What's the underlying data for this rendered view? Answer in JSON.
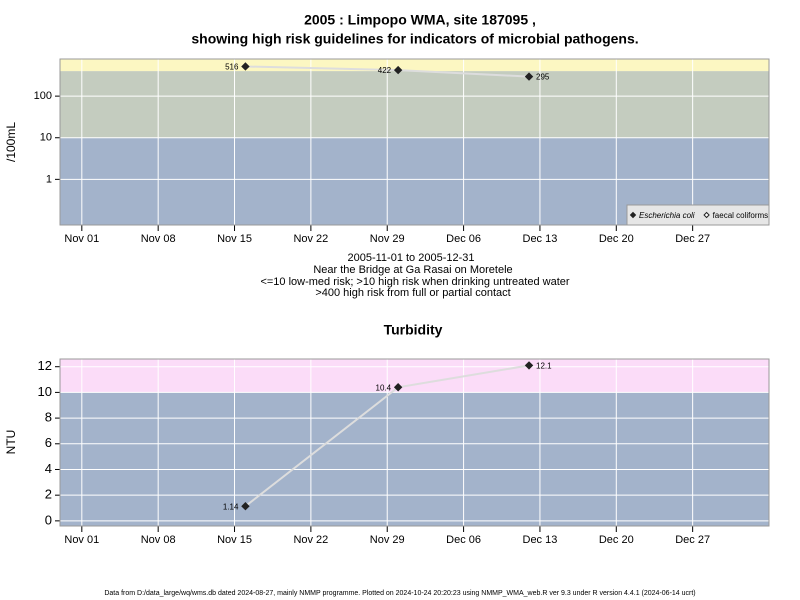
{
  "chart_data": [
    {
      "type": "scatter",
      "title": "2005 : Limpopo WMA, site 187095 ,",
      "subtitle": "showing high risk guidelines for indicators of microbial pathogens.",
      "ylabel": "/100mL",
      "log_y": true,
      "annotations": [
        "2005-11-01 to 2005-12-31",
        "Near the Bridge at Ga Rasai on Moretele",
        "<=10 low-med risk; >10 high risk when drinking untreated water",
        ">400 high risk from full or partial contact"
      ],
      "x": [
        "2005-11-16",
        "2005-11-30",
        "2005-12-12"
      ],
      "series": [
        {
          "name": "Escherichia coli",
          "color": "#222222",
          "values": [
            516,
            422,
            295
          ]
        },
        {
          "name": "faecal coliforms",
          "color": "#222222",
          "values": [
            null,
            null,
            null
          ]
        }
      ],
      "xlim": [
        "2005-10-30",
        "2006-01-03"
      ],
      "xticks": [
        {
          "value": "2005-11-01",
          "label": "Nov 01"
        },
        {
          "value": "2005-11-08",
          "label": "Nov 08"
        },
        {
          "value": "2005-11-15",
          "label": "Nov 15"
        },
        {
          "value": "2005-11-22",
          "label": "Nov 22"
        },
        {
          "value": "2005-11-29",
          "label": "Nov 29"
        },
        {
          "value": "2005-12-06",
          "label": "Dec 06"
        },
        {
          "value": "2005-12-13",
          "label": "Dec 13"
        },
        {
          "value": "2005-12-20",
          "label": "Dec 20"
        },
        {
          "value": "2005-12-27",
          "label": "Dec 27"
        }
      ],
      "ylim": [
        0.08,
        780
      ],
      "yticks": [
        1,
        10,
        100
      ],
      "thresholds": [
        10,
        400
      ],
      "band_colors": [
        "#a3b3cb",
        "#c4ccbf",
        "#fcf7c2"
      ],
      "legend": "bottom-right",
      "grid": true
    },
    {
      "type": "scatter",
      "title": "Turbidity",
      "ylabel": "NTU",
      "log_y": false,
      "x": [
        "2005-11-16",
        "2005-11-30",
        "2005-12-12"
      ],
      "series": [
        {
          "name": "Turbidity",
          "color": "#222222",
          "values": [
            1.14,
            10.4,
            12.1
          ]
        }
      ],
      "xlim": [
        "2005-10-30",
        "2006-01-03"
      ],
      "xticks": [
        {
          "value": "2005-11-01",
          "label": "Nov 01"
        },
        {
          "value": "2005-11-08",
          "label": "Nov 08"
        },
        {
          "value": "2005-11-15",
          "label": "Nov 15"
        },
        {
          "value": "2005-11-22",
          "label": "Nov 22"
        },
        {
          "value": "2005-11-29",
          "label": "Nov 29"
        },
        {
          "value": "2005-12-06",
          "label": "Dec 06"
        },
        {
          "value": "2005-12-13",
          "label": "Dec 13"
        },
        {
          "value": "2005-12-20",
          "label": "Dec 20"
        },
        {
          "value": "2005-12-27",
          "label": "Dec 27"
        }
      ],
      "ylim": [
        -0.4,
        12.6
      ],
      "yticks": [
        0,
        2,
        4,
        6,
        8,
        10,
        12
      ],
      "thresholds": [
        10
      ],
      "band_colors": [
        "#a3b3cb",
        "#fbdcf8"
      ],
      "grid": true
    }
  ],
  "footer": "Data from D:/data_large/wq/wms.db dated 2024-08-27, mainly NMMP programme. Plotted on 2024-10-24 20:20:23 using NMMP_WMA_web.R ver 9.3 under R version 4.4.1 (2024-06-14 ucrt)"
}
